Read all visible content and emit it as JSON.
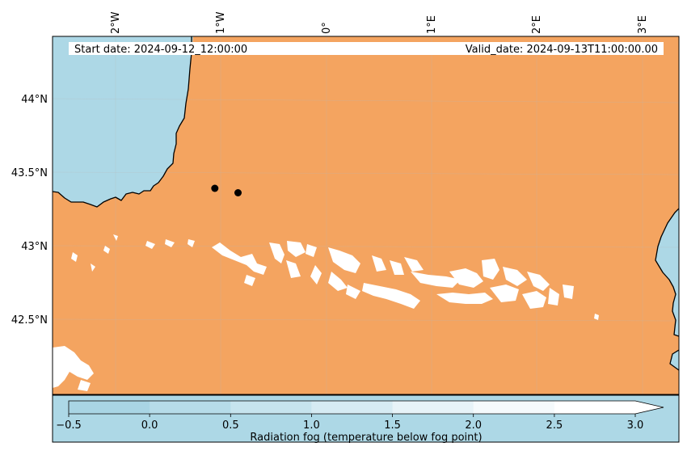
{
  "map": {
    "start_date_label": "Start date: 2024-09-12_12:00:00",
    "valid_date_label": "Valid_date: 2024-09-13T11:00:00.00",
    "lon_ticks": [
      "2°W",
      "1°W",
      "0°",
      "1°E",
      "2°E",
      "3°E"
    ],
    "lat_ticks": [
      "44°N",
      "43.5°N",
      "43°N",
      "42.5°N"
    ],
    "points": [
      {
        "lon": -1.06,
        "lat": 43.39
      },
      {
        "lon": -0.84,
        "lat": 43.36
      }
    ]
  },
  "colorbar": {
    "label": "Radiation fog (temperature below fog point)",
    "ticks": [
      "−0.5",
      "0.0",
      "0.5",
      "1.0",
      "1.5",
      "2.0",
      "2.5",
      "3.0"
    ],
    "levels": [
      -0.5,
      0.0,
      0.5,
      1.0,
      1.5,
      2.0,
      2.5,
      3.0
    ],
    "extend": "max"
  },
  "colors": {
    "sea": "#add8e6",
    "land": "#f4a460",
    "fog": "#ffffff",
    "colorbar_bins": [
      "#a9d5e4",
      "#b6dce9",
      "#c6e4ee",
      "#d6ebf3",
      "#e7f3f8",
      "#f5fafc",
      "#ffffff"
    ]
  }
}
